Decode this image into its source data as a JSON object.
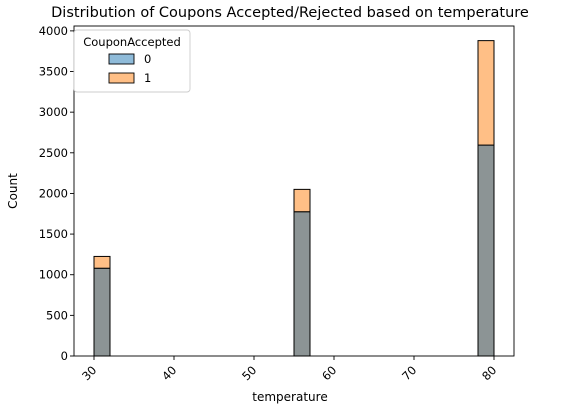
{
  "chart_data": {
    "type": "bar",
    "subtype": "stacked-histogram",
    "title": "Distribution of Coupons Accepted/Rejected based on temperature",
    "xlabel": "temperature",
    "ylabel": "Count",
    "xlim": [
      27.5,
      82.5
    ],
    "ylim": [
      0,
      4060
    ],
    "x_ticks": [
      30,
      40,
      50,
      60,
      70,
      80
    ],
    "y_ticks": [
      0,
      500,
      1000,
      1500,
      2000,
      2500,
      3000,
      3500,
      4000
    ],
    "bins": [
      {
        "x_start": 30,
        "x_end": 32,
        "counts": {
          "0": 1080,
          "1": 145
        }
      },
      {
        "x_start": 55,
        "x_end": 57,
        "counts": {
          "0": 1775,
          "1": 275
        }
      },
      {
        "x_start": 78,
        "x_end": 80,
        "counts": {
          "0": 2595,
          "1": 1285
        }
      }
    ],
    "legend": {
      "title": "CouponAccepted",
      "placement": "upper-left",
      "entries": [
        {
          "label": "0",
          "color": "#1f77b4",
          "alpha": 0.5
        },
        {
          "label": "1",
          "color": "#ff7f0e",
          "alpha": 0.5
        }
      ]
    },
    "grid": false,
    "colors": {
      "overlap": "#8c9495",
      "accepted_only": "#ffbf86",
      "edge": "#000000"
    }
  }
}
